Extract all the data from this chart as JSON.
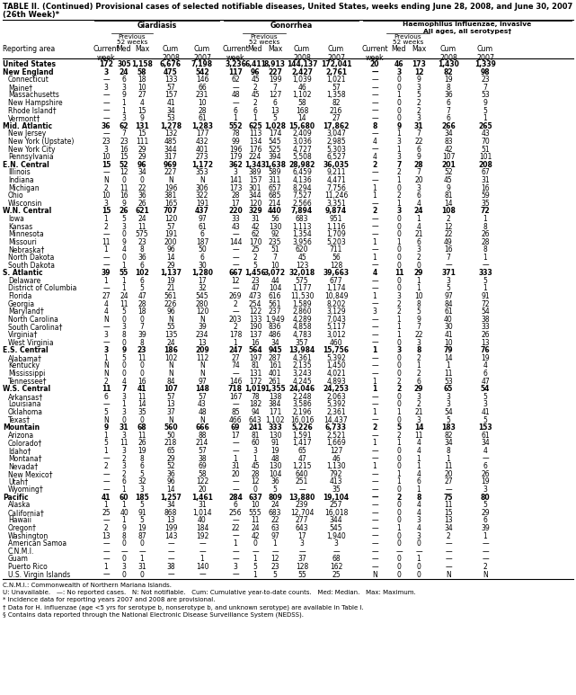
{
  "title_line1": "TABLE II. (Continued) Provisional cases of selected notifiable diseases, United States, weeks ending June 28, 2008, and June 30, 2007",
  "title_line2": "(26th Week)*",
  "rows": [
    [
      "United States",
      "172",
      "305",
      "1,158",
      "6,676",
      "7,198",
      "3,236",
      "6,411",
      "8,913",
      "144,137",
      "172,041",
      "20",
      "46",
      "173",
      "1,430",
      "1,339"
    ],
    [
      "New England",
      "3",
      "24",
      "58",
      "475",
      "542",
      "117",
      "96",
      "227",
      "2,427",
      "2,761",
      "—",
      "3",
      "12",
      "82",
      "98"
    ],
    [
      "Connecticut",
      "—",
      "6",
      "18",
      "133",
      "146",
      "62",
      "45",
      "199",
      "1,039",
      "1,021",
      "—",
      "0",
      "9",
      "19",
      "23"
    ],
    [
      "Maine†",
      "3",
      "3",
      "10",
      "57",
      "66",
      "—",
      "2",
      "7",
      "46",
      "57",
      "—",
      "0",
      "3",
      "8",
      "7"
    ],
    [
      "Massachusetts",
      "—",
      "9",
      "27",
      "157",
      "231",
      "48",
      "45",
      "127",
      "1,102",
      "1,358",
      "—",
      "1",
      "5",
      "36",
      "53"
    ],
    [
      "New Hampshire",
      "—",
      "1",
      "4",
      "41",
      "10",
      "—",
      "2",
      "6",
      "58",
      "82",
      "—",
      "0",
      "2",
      "6",
      "9"
    ],
    [
      "Rhode Island†",
      "—",
      "1",
      "15",
      "34",
      "28",
      "6",
      "6",
      "13",
      "168",
      "216",
      "—",
      "0",
      "2",
      "7",
      "5"
    ],
    [
      "Vermont†",
      "—",
      "3",
      "9",
      "53",
      "61",
      "1",
      "1",
      "5",
      "14",
      "27",
      "—",
      "0",
      "3",
      "6",
      "1"
    ],
    [
      "Mid. Atlantic",
      "36",
      "62",
      "131",
      "1,278",
      "1,283",
      "552",
      "625",
      "1,028",
      "15,680",
      "17,862",
      "8",
      "9",
      "31",
      "266",
      "265"
    ],
    [
      "New Jersey",
      "—",
      "7",
      "15",
      "132",
      "177",
      "78",
      "113",
      "174",
      "2,409",
      "3,047",
      "—",
      "1",
      "7",
      "34",
      "43"
    ],
    [
      "New York (Upstate)",
      "23",
      "23",
      "111",
      "485",
      "432",
      "99",
      "134",
      "545",
      "3,036",
      "2,985",
      "4",
      "3",
      "22",
      "83",
      "70"
    ],
    [
      "New York City",
      "3",
      "16",
      "29",
      "344",
      "401",
      "196",
      "176",
      "525",
      "4,727",
      "5,303",
      "—",
      "1",
      "6",
      "42",
      "51"
    ],
    [
      "Pennsylvania",
      "10",
      "15",
      "29",
      "317",
      "273",
      "179",
      "224",
      "394",
      "5,508",
      "6,527",
      "4",
      "3",
      "9",
      "107",
      "101"
    ],
    [
      "E.N. Central",
      "15",
      "52",
      "96",
      "969",
      "1,172",
      "362",
      "1,343",
      "1,638",
      "28,982",
      "36,035",
      "2",
      "7",
      "28",
      "201",
      "208"
    ],
    [
      "Illinois",
      "—",
      "12",
      "34",
      "227",
      "353",
      "3",
      "389",
      "589",
      "6,459",
      "9,211",
      "—",
      "2",
      "7",
      "52",
      "67"
    ],
    [
      "Indiana",
      "N",
      "0",
      "0",
      "N",
      "N",
      "141",
      "157",
      "311",
      "4,136",
      "4,471",
      "—",
      "1",
      "20",
      "45",
      "31"
    ],
    [
      "Michigan",
      "2",
      "11",
      "22",
      "196",
      "306",
      "173",
      "301",
      "657",
      "8,294",
      "7,756",
      "1",
      "0",
      "3",
      "9",
      "16"
    ],
    [
      "Ohio",
      "10",
      "16",
      "36",
      "381",
      "322",
      "28",
      "344",
      "685",
      "7,527",
      "11,246",
      "1",
      "2",
      "6",
      "81",
      "59"
    ],
    [
      "Wisconsin",
      "3",
      "9",
      "26",
      "165",
      "191",
      "17",
      "120",
      "214",
      "2,566",
      "3,351",
      "—",
      "1",
      "4",
      "14",
      "35"
    ],
    [
      "W.N. Central",
      "15",
      "26",
      "621",
      "707",
      "437",
      "220",
      "329",
      "440",
      "7,894",
      "9,874",
      "2",
      "3",
      "24",
      "108",
      "72"
    ],
    [
      "Iowa",
      "1",
      "5",
      "24",
      "120",
      "97",
      "33",
      "31",
      "56",
      "683",
      "951",
      "—",
      "0",
      "1",
      "2",
      "1"
    ],
    [
      "Kansas",
      "2",
      "3",
      "11",
      "57",
      "61",
      "43",
      "42",
      "130",
      "1,113",
      "1,116",
      "—",
      "0",
      "4",
      "12",
      "8"
    ],
    [
      "Minnesota",
      "—",
      "0",
      "575",
      "191",
      "6",
      "—",
      "62",
      "92",
      "1,354",
      "1,709",
      "—",
      "0",
      "21",
      "22",
      "26"
    ],
    [
      "Missouri",
      "11",
      "9",
      "23",
      "200",
      "187",
      "144",
      "170",
      "235",
      "3,956",
      "5,203",
      "1",
      "1",
      "6",
      "49",
      "28"
    ],
    [
      "Nebraska†",
      "1",
      "4",
      "8",
      "96",
      "50",
      "—",
      "25",
      "51",
      "620",
      "711",
      "—",
      "0",
      "3",
      "16",
      "8"
    ],
    [
      "North Dakota",
      "—",
      "0",
      "36",
      "14",
      "6",
      "—",
      "2",
      "7",
      "45",
      "56",
      "1",
      "0",
      "2",
      "7",
      "1"
    ],
    [
      "South Dakota",
      "—",
      "1",
      "6",
      "29",
      "30",
      "—",
      "5",
      "10",
      "123",
      "128",
      "—",
      "0",
      "0",
      "—",
      "—"
    ],
    [
      "S. Atlantic",
      "39",
      "55",
      "102",
      "1,137",
      "1,280",
      "667",
      "1,456",
      "3,072",
      "32,018",
      "39,663",
      "4",
      "11",
      "29",
      "371",
      "333"
    ],
    [
      "Delaware",
      "1",
      "1",
      "6",
      "19",
      "17",
      "12",
      "23",
      "44",
      "575",
      "677",
      "—",
      "0",
      "1",
      "3",
      "5"
    ],
    [
      "District of Columbia",
      "—",
      "1",
      "5",
      "21",
      "32",
      "—",
      "47",
      "104",
      "1,177",
      "1,174",
      "—",
      "0",
      "1",
      "5",
      "1"
    ],
    [
      "Florida",
      "27",
      "24",
      "47",
      "561",
      "545",
      "269",
      "473",
      "616",
      "11,530",
      "10,849",
      "1",
      "3",
      "10",
      "97",
      "91"
    ],
    [
      "Georgia",
      "4",
      "11",
      "28",
      "226",
      "280",
      "2",
      "254",
      "561",
      "1,589",
      "8,202",
      "—",
      "2",
      "8",
      "84",
      "72"
    ],
    [
      "Maryland†",
      "4",
      "5",
      "18",
      "96",
      "120",
      "—",
      "122",
      "237",
      "2,860",
      "3,129",
      "3",
      "2",
      "5",
      "61",
      "54"
    ],
    [
      "North Carolina",
      "N",
      "0",
      "0",
      "N",
      "N",
      "203",
      "133",
      "1,949",
      "4,289",
      "7,043",
      "—",
      "1",
      "9",
      "40",
      "38"
    ],
    [
      "South Carolina†",
      "—",
      "3",
      "7",
      "55",
      "39",
      "2",
      "190",
      "836",
      "4,858",
      "5,117",
      "—",
      "1",
      "7",
      "30",
      "33"
    ],
    [
      "Virginia†",
      "3",
      "8",
      "39",
      "135",
      "234",
      "178",
      "137",
      "486",
      "4,783",
      "3,012",
      "—",
      "1",
      "22",
      "41",
      "26"
    ],
    [
      "West Virginia",
      "—",
      "0",
      "8",
      "24",
      "13",
      "1",
      "16",
      "34",
      "357",
      "460",
      "—",
      "0",
      "3",
      "10",
      "13"
    ],
    [
      "E.S. Central",
      "3",
      "9",
      "23",
      "186",
      "209",
      "247",
      "564",
      "945",
      "13,984",
      "15,756",
      "1",
      "3",
      "8",
      "79",
      "76"
    ],
    [
      "Alabama†",
      "1",
      "5",
      "11",
      "102",
      "112",
      "27",
      "197",
      "287",
      "4,361",
      "5,392",
      "—",
      "0",
      "2",
      "14",
      "19"
    ],
    [
      "Kentucky",
      "N",
      "0",
      "0",
      "N",
      "N",
      "74",
      "81",
      "161",
      "2,135",
      "1,450",
      "—",
      "0",
      "1",
      "1",
      "4"
    ],
    [
      "Mississippi",
      "N",
      "0",
      "0",
      "N",
      "N",
      "—",
      "131",
      "401",
      "3,243",
      "4,021",
      "—",
      "0",
      "2",
      "11",
      "6"
    ],
    [
      "Tennessee†",
      "2",
      "4",
      "16",
      "84",
      "97",
      "146",
      "172",
      "261",
      "4,245",
      "4,893",
      "1",
      "2",
      "6",
      "53",
      "47"
    ],
    [
      "W.S. Central",
      "11",
      "7",
      "41",
      "107",
      "148",
      "718",
      "1,019",
      "1,355",
      "24,046",
      "24,253",
      "1",
      "2",
      "29",
      "65",
      "54"
    ],
    [
      "Arkansas†",
      "6",
      "3",
      "11",
      "57",
      "57",
      "167",
      "78",
      "138",
      "2,248",
      "2,063",
      "—",
      "0",
      "3",
      "3",
      "5"
    ],
    [
      "Louisiana",
      "—",
      "1",
      "14",
      "13",
      "43",
      "—",
      "182",
      "384",
      "3,586",
      "5,392",
      "—",
      "0",
      "2",
      "3",
      "3"
    ],
    [
      "Oklahoma",
      "5",
      "3",
      "35",
      "37",
      "48",
      "85",
      "94",
      "171",
      "2,196",
      "2,361",
      "1",
      "1",
      "21",
      "54",
      "41"
    ],
    [
      "Texas†",
      "N",
      "0",
      "0",
      "N",
      "N",
      "466",
      "643",
      "1,102",
      "16,016",
      "14,437",
      "—",
      "0",
      "3",
      "5",
      "5"
    ],
    [
      "Mountain",
      "9",
      "31",
      "68",
      "560",
      "666",
      "69",
      "241",
      "333",
      "5,226",
      "6,733",
      "2",
      "5",
      "14",
      "183",
      "153"
    ],
    [
      "Arizona",
      "1",
      "3",
      "11",
      "50",
      "88",
      "17",
      "81",
      "130",
      "1,591",
      "2,521",
      "—",
      "2",
      "11",
      "82",
      "61"
    ],
    [
      "Colorado†",
      "5",
      "11",
      "26",
      "218",
      "214",
      "—",
      "60",
      "91",
      "1,417",
      "1,669",
      "1",
      "1",
      "4",
      "34",
      "34"
    ],
    [
      "Idaho†",
      "1",
      "3",
      "19",
      "65",
      "57",
      "—",
      "3",
      "19",
      "65",
      "127",
      "—",
      "0",
      "4",
      "8",
      "4"
    ],
    [
      "Montana†",
      "—",
      "2",
      "8",
      "29",
      "38",
      "1",
      "1",
      "48",
      "47",
      "46",
      "—",
      "0",
      "1",
      "1",
      "—"
    ],
    [
      "Nevada†",
      "2",
      "3",
      "6",
      "52",
      "69",
      "31",
      "45",
      "130",
      "1,215",
      "1,130",
      "1",
      "0",
      "1",
      "11",
      "6"
    ],
    [
      "New Mexico†",
      "—",
      "2",
      "5",
      "36",
      "58",
      "20",
      "28",
      "104",
      "640",
      "792",
      "—",
      "1",
      "4",
      "20",
      "26"
    ],
    [
      "Utah†",
      "—",
      "6",
      "32",
      "96",
      "122",
      "—",
      "12",
      "36",
      "251",
      "413",
      "—",
      "1",
      "6",
      "27",
      "19"
    ],
    [
      "Wyoming†",
      "—",
      "1",
      "3",
      "14",
      "20",
      "—",
      "0",
      "5",
      "—",
      "35",
      "—",
      "0",
      "1",
      "—",
      "3"
    ],
    [
      "Pacific",
      "41",
      "60",
      "185",
      "1,257",
      "1,461",
      "284",
      "637",
      "809",
      "13,880",
      "19,104",
      "—",
      "2",
      "8",
      "75",
      "80"
    ],
    [
      "Alaska",
      "1",
      "1",
      "5",
      "34",
      "31",
      "6",
      "10",
      "24",
      "239",
      "257",
      "—",
      "0",
      "4",
      "11",
      "5"
    ],
    [
      "California†",
      "25",
      "40",
      "91",
      "868",
      "1,014",
      "256",
      "555",
      "683",
      "12,704",
      "16,018",
      "—",
      "0",
      "4",
      "15",
      "29"
    ],
    [
      "Hawaii",
      "—",
      "1",
      "5",
      "13",
      "40",
      "—",
      "11",
      "22",
      "277",
      "344",
      "—",
      "0",
      "3",
      "13",
      "6"
    ],
    [
      "Oregon†",
      "2",
      "9",
      "19",
      "199",
      "184",
      "22",
      "24",
      "63",
      "643",
      "545",
      "—",
      "1",
      "4",
      "34",
      "39"
    ],
    [
      "Washington",
      "13",
      "8",
      "87",
      "143",
      "192",
      "—",
      "42",
      "97",
      "17",
      "1,940",
      "—",
      "0",
      "3",
      "2",
      "1"
    ],
    [
      "American Samoa",
      "—",
      "0",
      "0",
      "—",
      "—",
      "1",
      "0",
      "1",
      "3",
      "3",
      "—",
      "0",
      "0",
      "—",
      "—"
    ],
    [
      "C.N.M.I.",
      "—",
      "—",
      "—",
      "—",
      "—",
      "—",
      "—",
      "—",
      "—",
      "—",
      "—",
      "—",
      "—",
      "—",
      "—"
    ],
    [
      "Guam",
      "—",
      "0",
      "1",
      "—",
      "1",
      "—",
      "1",
      "12",
      "37",
      "68",
      "—",
      "0",
      "1",
      "—",
      "—"
    ],
    [
      "Puerto Rico",
      "1",
      "3",
      "31",
      "38",
      "140",
      "3",
      "5",
      "23",
      "128",
      "162",
      "—",
      "0",
      "0",
      "—",
      "2"
    ],
    [
      "U.S. Virgin Islands",
      "—",
      "0",
      "0",
      "—",
      "—",
      "—",
      "1",
      "5",
      "55",
      "25",
      "N",
      "0",
      "0",
      "N",
      "N"
    ]
  ],
  "bold_sections": [
    "United States",
    "New England",
    "Mid. Atlantic",
    "E.N. Central",
    "W.N. Central",
    "S. Atlantic",
    "E.S. Central",
    "W.S. Central",
    "Mountain",
    "Pacific"
  ],
  "footnotes": [
    "C.N.M.I.: Commonwealth of Northern Mariana Islands.",
    "U: Unavailable.   —: No reported cases.   N: Not notifiable.   Cum: Cumulative year-to-date counts.   Med: Median.   Max: Maximum.",
    "* Incidence data for reporting years 2007 and 2008 are provisional.",
    "† Data for H. influenzae (age <5 yrs for serotype b, nonserotype b, and unknown serotype) are available in Table I.",
    "§ Contains data reported through the National Electronic Disease Surveillance System (NEDSS)."
  ]
}
